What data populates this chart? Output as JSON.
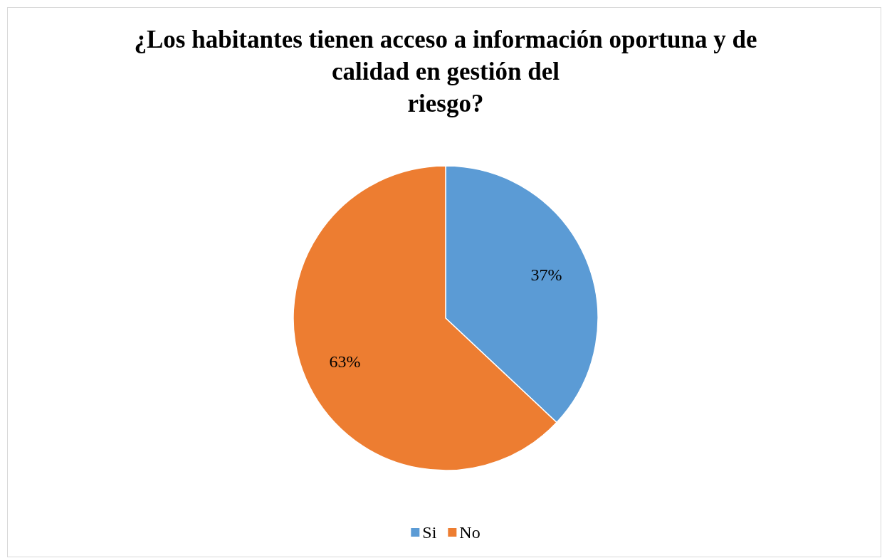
{
  "chart_data": {
    "type": "pie",
    "title": "¿Los habitantes tienen acceso a información oportuna y de\ncalidad en gestión del\nriesgo?",
    "categories": [
      "Si",
      "No"
    ],
    "values": [
      37,
      63
    ],
    "value_labels": [
      "37%",
      "63%"
    ],
    "colors": [
      "#5b9bd5",
      "#ed7d31"
    ],
    "legend": "bottom"
  }
}
